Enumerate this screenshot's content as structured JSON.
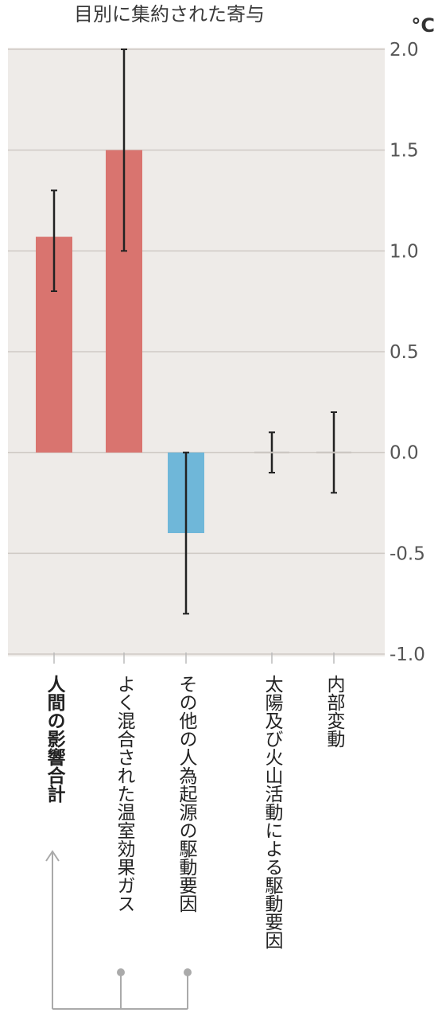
{
  "chart_data": {
    "type": "bar",
    "title": "目別に集約された寄与",
    "unit": "°C",
    "ylim": [
      -1.0,
      2.0
    ],
    "yticks": [
      "2.0",
      "1.5",
      "1.0",
      "0.5",
      "0.0",
      "-0.5",
      "-1.0"
    ],
    "grid": true,
    "categories": [
      "人間の影響合計",
      "よく混合された温室効果ガス",
      "その他の人為起源の駆動要因",
      "太陽及び火山活動による駆動要因",
      "内部変動"
    ],
    "values": [
      1.07,
      1.5,
      -0.4,
      0.0,
      0.0
    ],
    "error_low": [
      0.8,
      1.0,
      -0.8,
      -0.1,
      -0.2
    ],
    "error_high": [
      1.3,
      2.0,
      0.0,
      0.1,
      0.2
    ],
    "bold_category_index": 0,
    "colors": {
      "positive": "#d9746f",
      "negative": "#6fb7d9",
      "background": "#eeebe8",
      "grid": "#cfcac5",
      "errorbar": "#222222",
      "bracket": "#aaaaaa"
    }
  }
}
